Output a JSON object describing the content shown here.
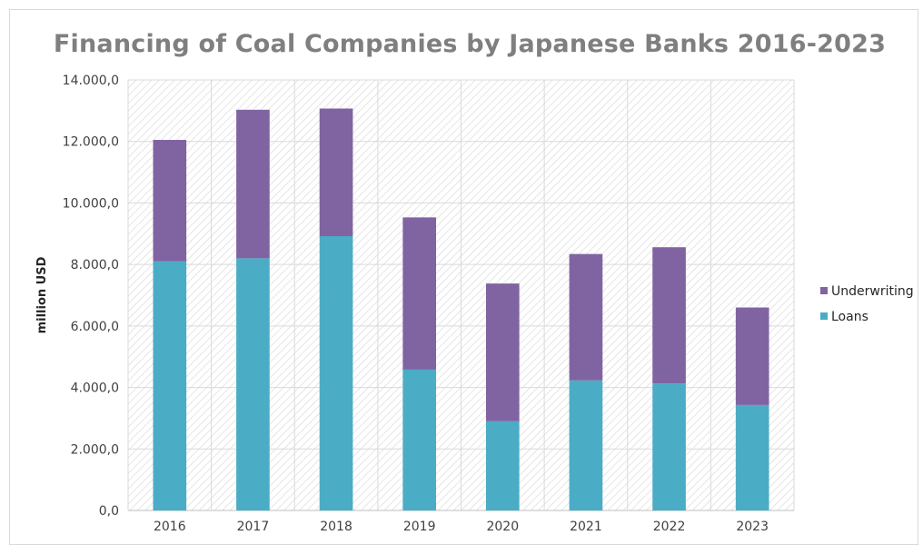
{
  "chart_data": {
    "type": "bar",
    "stacked": true,
    "title": "Financing of Coal Companies by Japanese Banks 2016-2023",
    "xlabel": "",
    "ylabel": "million USD",
    "categories": [
      "2016",
      "2017",
      "2018",
      "2019",
      "2020",
      "2021",
      "2022",
      "2023"
    ],
    "series": [
      {
        "name": "Loans",
        "color": "#4bacc6",
        "values": [
          8100,
          8200,
          8920,
          4580,
          2900,
          4230,
          4130,
          3430
        ]
      },
      {
        "name": "Underwriting",
        "color": "#8064a2",
        "values": [
          3950,
          4830,
          4150,
          4950,
          4480,
          4110,
          4430,
          3170
        ]
      }
    ],
    "ylim": [
      0,
      14000
    ],
    "yticks": [
      "0,0",
      "2.000,0",
      "4.000,0",
      "6.000,0",
      "8.000,0",
      "10.000,0",
      "12.000,0",
      "14.000,0"
    ],
    "grid": true,
    "plot_background": "diagonal hatch",
    "legend": {
      "placement": "right",
      "entries": [
        "Underwriting",
        "Loans"
      ]
    }
  }
}
